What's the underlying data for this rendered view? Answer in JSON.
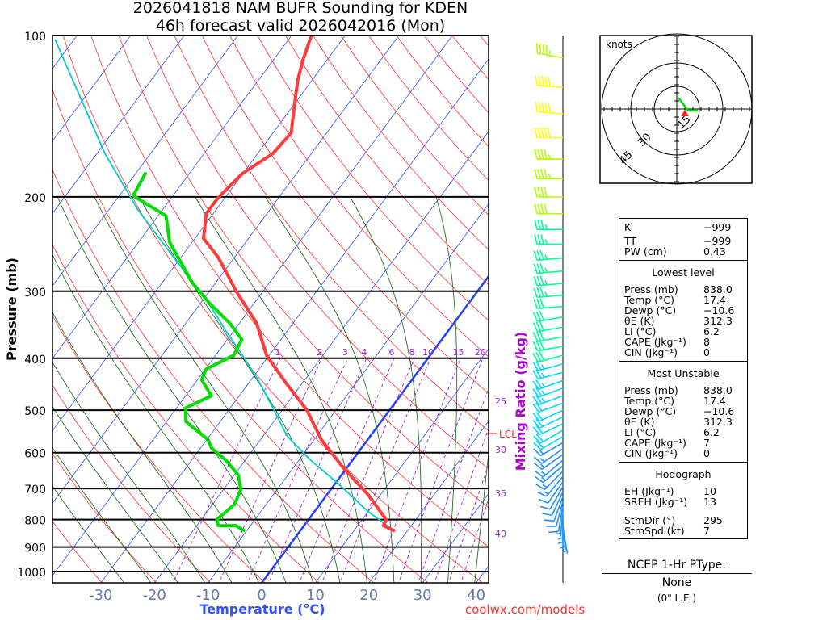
{
  "title": {
    "line1": "2026041818 NAM BUFR Sounding for KDEN",
    "line2": "46h forecast valid 2026042016 (Mon)"
  },
  "chart_data": {
    "type": "line",
    "title": "2026041818 NAM BUFR Sounding for KDEN - 46h forecast valid 2026042016 (Mon)",
    "xlabel": "Temperature (°C)",
    "ylabel": "Pressure (mb)",
    "y2label": "Mixing Ratio (g/kg)",
    "ylim": [
      100,
      1050
    ],
    "pressure_ticks": [
      "100",
      "200",
      "300",
      "400",
      "500",
      "600",
      "700",
      "800",
      "900",
      "1000"
    ],
    "temp_ticks": [
      "-30",
      "-20",
      "-10",
      "0",
      "10",
      "20",
      "30",
      "40"
    ],
    "mixing_ratio_labels": [
      "1",
      "2",
      "3",
      "4",
      "6",
      "8",
      "10",
      "15",
      "20",
      "25",
      "30",
      "35",
      "40"
    ],
    "lcl_label": "LCL",
    "lcl_pressure": 553,
    "series": [
      {
        "name": "Temperature",
        "color": "#ff3c3c",
        "p": [
          838,
          821,
          800,
          717,
          641,
          568,
          500,
          446,
          395,
          344,
          301,
          260,
          239,
          215,
          201,
          181,
          166,
          152,
          135,
          121,
          111,
          100
        ],
        "t": [
          17.4,
          14.8,
          14.5,
          7.5,
          -0.6,
          -8.6,
          -15.4,
          -22.9,
          -30.5,
          -36.8,
          -44.8,
          -52.9,
          -58.4,
          -61.3,
          -61.3,
          -60.1,
          -57.2,
          -56.6,
          -59.8,
          -62.7,
          -64.5,
          -66.3
        ]
      },
      {
        "name": "Dewpoint",
        "color": "#00dd00",
        "p": [
          838,
          821,
          821,
          800,
          750,
          702,
          660,
          620,
          588,
          568,
          525,
          495,
          470,
          439,
          419,
          395,
          369,
          344,
          316,
          289,
          243,
          217,
          199,
          181
        ],
        "t": [
          -10.6,
          -12.7,
          -16.0,
          -17.1,
          -15.9,
          -16.8,
          -19.3,
          -23.6,
          -28.0,
          -29.7,
          -36.4,
          -38.3,
          -35.2,
          -39.2,
          -39.9,
          -36.6,
          -37.3,
          -41.8,
          -48.3,
          -54.4,
          -64.2,
          -68.5,
          -77.4,
          -78.2
        ]
      },
      {
        "name": "Parcel",
        "color": "#00cccc",
        "p": [
          838,
          771,
          688,
          620,
          558,
          503,
          439,
          395,
          356,
          310,
          260,
          211,
          166,
          102
        ],
        "t": [
          17.4,
          9.8,
          0.9,
          -7.8,
          -15.6,
          -21.2,
          -28.7,
          -35.0,
          -41.4,
          -49.6,
          -61.2,
          -74.7,
          -88.5,
          -113.4
        ]
      }
    ],
    "winds": {
      "p": [
        110,
        125,
        140,
        155,
        170,
        185,
        200,
        215,
        230,
        245,
        260,
        275,
        290,
        305,
        320,
        335,
        350,
        365,
        380,
        395,
        410,
        425,
        440,
        455,
        470,
        485,
        500,
        515,
        530,
        545,
        560,
        575,
        590,
        605,
        620,
        635,
        650,
        665,
        680,
        695,
        710,
        725,
        740,
        755,
        770,
        785,
        800,
        815,
        830
      ],
      "dir": [
        280,
        275,
        275,
        270,
        270,
        270,
        270,
        270,
        270,
        270,
        265,
        265,
        265,
        265,
        265,
        260,
        260,
        260,
        260,
        255,
        255,
        255,
        250,
        250,
        250,
        250,
        245,
        245,
        245,
        240,
        240,
        240,
        235,
        235,
        230,
        230,
        225,
        220,
        215,
        210,
        205,
        200,
        195,
        190,
        185,
        180,
        180,
        175,
        170
      ],
      "spd": [
        45,
        50,
        50,
        50,
        45,
        45,
        40,
        40,
        35,
        35,
        35,
        35,
        35,
        35,
        30,
        30,
        30,
        30,
        30,
        30,
        25,
        25,
        25,
        25,
        25,
        20,
        20,
        20,
        20,
        20,
        20,
        15,
        15,
        15,
        15,
        15,
        15,
        15,
        10,
        10,
        10,
        10,
        10,
        10,
        5,
        5,
        5,
        5,
        5
      ]
    },
    "hodograph": {
      "units_label": "knots",
      "ring_labels": [
        "15",
        "30",
        "45"
      ],
      "u": [
        1,
        4,
        7,
        13
      ],
      "v": [
        7,
        3,
        -1,
        -1
      ],
      "storm_u": 5,
      "storm_v": -3
    }
  },
  "stats": {
    "top": [
      {
        "label": "K",
        "value": "−999"
      },
      {
        "label": "TT",
        "value": "−999"
      },
      {
        "label": "PW (cm)",
        "value": "0.43"
      }
    ],
    "lowest": {
      "header": "Lowest level",
      "rows": [
        {
          "label": "Press (mb)",
          "value": "838.0"
        },
        {
          "label": "Temp (°C)",
          "value": "17.4"
        },
        {
          "label": "Dewp (°C)",
          "value": "−10.6"
        },
        {
          "label": "θE (K)",
          "value": "312.3"
        },
        {
          "label": "LI (°C)",
          "value": "6.2"
        },
        {
          "label": "CAPE (Jkg⁻¹)",
          "value": "8"
        },
        {
          "label": "CIN (Jkg⁻¹)",
          "value": "0"
        }
      ]
    },
    "unstable": {
      "header": "Most Unstable",
      "rows": [
        {
          "label": "Press (mb)",
          "value": "838.0"
        },
        {
          "label": "Temp (°C)",
          "value": "17.4"
        },
        {
          "label": "Dewp (°C)",
          "value": "−10.6"
        },
        {
          "label": "θE (K)",
          "value": "312.3"
        },
        {
          "label": "LI (°C)",
          "value": "6.2"
        },
        {
          "label": "CAPE (Jkg⁻¹)",
          "value": "7"
        },
        {
          "label": "CIN (Jkg⁻¹)",
          "value": "0"
        }
      ]
    },
    "hodo": {
      "header": "Hodograph",
      "rows": [
        {
          "label": "EH (Jkg⁻¹)",
          "value": "10"
        },
        {
          "label": "SREH (Jkg⁻¹)",
          "value": "13"
        },
        {
          "label": "StmDir (°)",
          "value": "295"
        },
        {
          "label": "StmSpd (kt)",
          "value": "7"
        }
      ]
    }
  },
  "ptype": {
    "header": "NCEP 1-Hr PType:",
    "value": "None",
    "le": "(0\" L.E.)"
  },
  "credit": "coolwx.com/models"
}
